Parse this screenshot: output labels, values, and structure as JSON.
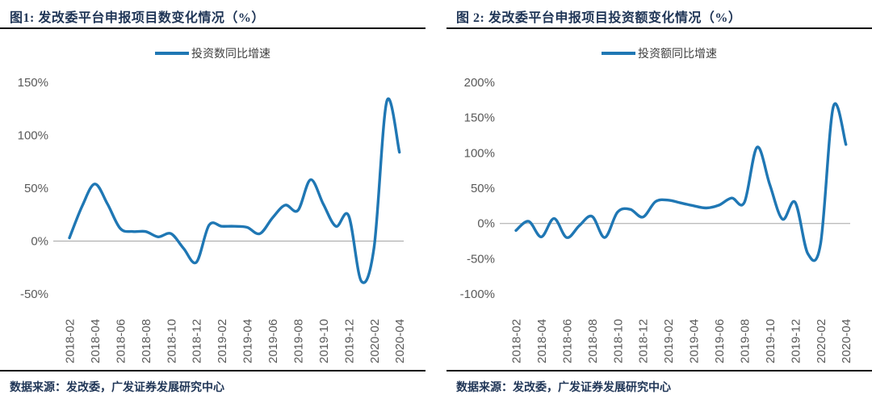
{
  "styles": {
    "title_color": "#1f3556",
    "rule_color": "#0a0a0a",
    "axis_text_color": "#595959",
    "zero_line_color": "#a6a6a6",
    "legend_text_color": "#3f3f3f",
    "line_color": "#1f77b4"
  },
  "chart_data": [
    {
      "type": "line",
      "title": "图1: 发改委平台申报项目数变化情况（%）",
      "legend": "投资数同比增速",
      "legend_position": "top-center",
      "source": "数据来源：发改委，广发证券发展研究中心",
      "grid": "zero-line-only",
      "x": [
        "2018-02",
        "2018-03",
        "2018-04",
        "2018-05",
        "2018-06",
        "2018-07",
        "2018-08",
        "2018-09",
        "2018-10",
        "2018-11",
        "2018-12",
        "2019-01",
        "2019-02",
        "2019-03",
        "2019-04",
        "2019-05",
        "2019-06",
        "2019-07",
        "2019-08",
        "2019-09",
        "2019-10",
        "2019-11",
        "2019-12",
        "2020-01",
        "2020-02",
        "2020-03",
        "2020-04"
      ],
      "xtick_every": 2,
      "values": [
        3,
        33,
        54,
        35,
        12,
        9,
        9,
        4,
        7,
        -7,
        -20,
        15,
        14,
        14,
        13,
        7,
        22,
        34,
        29,
        58,
        35,
        14,
        24,
        -38,
        -6,
        132,
        84
      ],
      "ylim": [
        -50,
        150
      ],
      "yticks": [
        "150%",
        "100%",
        "50%",
        "0%",
        "-50%"
      ],
      "line_color": "#1f77b4"
    },
    {
      "type": "line",
      "title": "图 2: 发改委平台申报项目投资额变化情况（%）",
      "legend": "投资额同比增速",
      "legend_position": "top-center",
      "source": "数据来源：发改委，广发证券发展研究中心",
      "grid": "zero-line-only",
      "x": [
        "2018-02",
        "2018-03",
        "2018-04",
        "2018-05",
        "2018-06",
        "2018-07",
        "2018-08",
        "2018-09",
        "2018-10",
        "2018-11",
        "2018-12",
        "2019-01",
        "2019-02",
        "2019-03",
        "2019-04",
        "2019-05",
        "2019-06",
        "2019-07",
        "2019-08",
        "2019-09",
        "2019-10",
        "2019-11",
        "2019-12",
        "2020-01",
        "2020-02",
        "2020-03",
        "2020-04"
      ],
      "xtick_every": 2,
      "values": [
        -10,
        3,
        -19,
        7,
        -20,
        -3,
        10,
        -20,
        16,
        20,
        9,
        31,
        33,
        29,
        25,
        22,
        26,
        36,
        30,
        108,
        55,
        6,
        30,
        -43,
        -29,
        165,
        112
      ],
      "ylim": [
        -100,
        200
      ],
      "yticks": [
        "200%",
        "150%",
        "100%",
        "50%",
        "0%",
        "-50%",
        "-100%"
      ],
      "line_color": "#1f77b4"
    }
  ]
}
